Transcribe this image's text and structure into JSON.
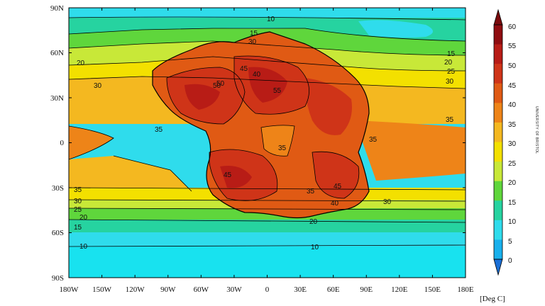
{
  "map": {
    "lat_labels": [
      "90N",
      "60N",
      "30N",
      "0",
      "30S",
      "60S",
      "90S"
    ],
    "lon_labels": [
      "180W",
      "150W",
      "120W",
      "90W",
      "60W",
      "30W",
      "0",
      "30E",
      "60E",
      "90E",
      "120E",
      "150E",
      "180E"
    ],
    "contour_labels": [
      "10",
      "15",
      "15",
      "30",
      "20",
      "25",
      "30",
      "35",
      "20",
      "30",
      "35",
      "35",
      "35",
      "40",
      "40",
      "45",
      "45",
      "50",
      "35",
      "35",
      "30",
      "30",
      "25",
      "20",
      "15",
      "10",
      "20",
      "50",
      "55",
      "45"
    ],
    "colors": {
      "c0": "#1a6fd6",
      "c5": "#18b0ec",
      "c10": "#2fdcec",
      "c15": "#26d3a0",
      "c20": "#5fd63c",
      "c25": "#c8e838",
      "c30": "#f3e000",
      "c35": "#f4b820",
      "c40": "#ee8418",
      "c45": "#e05a14",
      "c50": "#cf3418",
      "c55": "#b81c16",
      "c60": "#8f0c10"
    }
  },
  "colorbar": {
    "ticks": [
      "60",
      "55",
      "50",
      "45",
      "40",
      "35",
      "30",
      "25",
      "20",
      "15",
      "10",
      "5",
      "0"
    ],
    "unit": "[Deg C]"
  },
  "credit": "UNIVERSITY OF BRISTOL"
}
